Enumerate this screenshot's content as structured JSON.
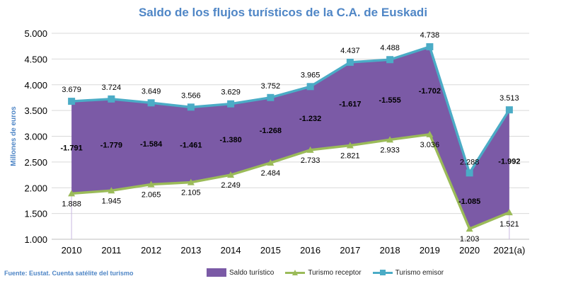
{
  "title": "Saldo de los flujos turísticos de la C.A. de Euskadi",
  "source": "Fuente: Eustat. Cuenta satélite del turismo",
  "colors": {
    "saldo_fill": "#7b5aa6",
    "receptor": "#9bbb59",
    "emisor": "#4bacc6",
    "title": "#4f86c6",
    "grid": "#d9d9d9"
  },
  "chart_data": {
    "type": "area",
    "title": "Saldo de los flujos turísticos de la C.A. de Euskadi",
    "ylabel": "Millones de euros",
    "xlabel": "",
    "ylim": [
      1000,
      5000
    ],
    "yticks": [
      "1.000",
      "1.500",
      "2.000",
      "2.500",
      "3.000",
      "3.500",
      "4.000",
      "4.500",
      "5.000"
    ],
    "categories": [
      "2010",
      "2011",
      "2012",
      "2013",
      "2014",
      "2015",
      "2016",
      "2017",
      "2018",
      "2019",
      "2020",
      "2021(a)"
    ],
    "grid": true,
    "legend_position": "bottom",
    "series": [
      {
        "name": "Saldo turístico",
        "values": [
          -1791,
          -1779,
          -1584,
          -1461,
          -1380,
          -1268,
          -1232,
          -1617,
          -1555,
          -1702,
          -1085,
          -1992
        ],
        "labels": [
          "-1.791",
          "-1.779",
          "-1.584",
          "-1.461",
          "-1.380",
          "-1.268",
          "-1.232",
          "-1.617",
          "-1.555",
          "-1.702",
          "-1.085",
          "-1.992"
        ]
      },
      {
        "name": "Turismo receptor",
        "values": [
          1888,
          1945,
          2065,
          2105,
          2249,
          2484,
          2733,
          2821,
          2933,
          3036,
          1203,
          1521
        ],
        "labels": [
          "1.888",
          "1.945",
          "2.065",
          "2.105",
          "2.249",
          "2.484",
          "2.733",
          "2.821",
          "2.933",
          "3.036",
          "1.203",
          "1.521"
        ]
      },
      {
        "name": "Turismo emisor",
        "values": [
          3679,
          3724,
          3649,
          3566,
          3629,
          3752,
          3965,
          4437,
          4488,
          4738,
          2288,
          3513
        ],
        "labels": [
          "3.679",
          "3.724",
          "3.649",
          "3.566",
          "3.629",
          "3.752",
          "3.965",
          "4.437",
          "4.488",
          "4.738",
          "2.288",
          "3.513"
        ]
      }
    ]
  }
}
